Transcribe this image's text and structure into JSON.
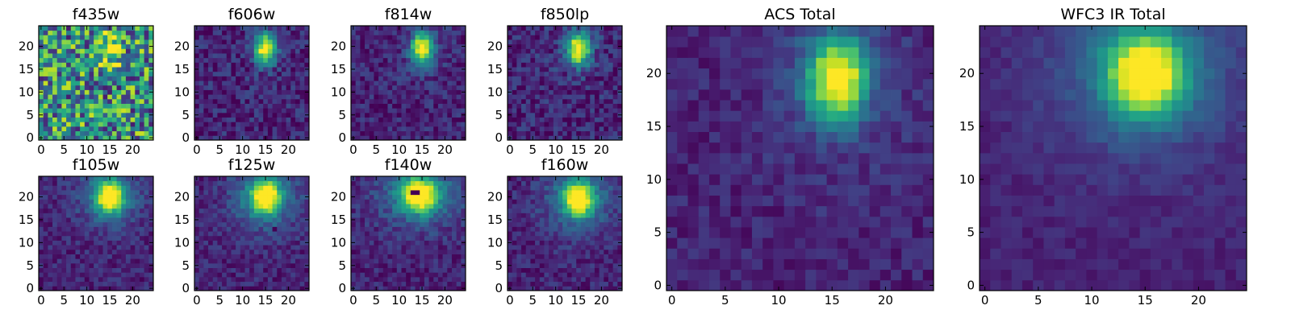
{
  "chart_data": [
    {
      "type": "heatmap",
      "title": "f435w",
      "cmap": "viridis",
      "grid_size": 25,
      "xticks": [
        0,
        5,
        10,
        15,
        20
      ],
      "yticks": [
        0,
        5,
        10,
        15,
        20
      ],
      "source": {
        "cx": 15,
        "cy": 19.5,
        "sx": 1.7,
        "sy": 2.4
      },
      "noise": 0.42,
      "halo": 0.0,
      "ring": false,
      "bright_background": true
    },
    {
      "type": "heatmap",
      "title": "f606w",
      "cmap": "viridis",
      "grid_size": 25,
      "xticks": [
        0,
        5,
        10,
        15,
        20
      ],
      "yticks": [
        0,
        5,
        10,
        15,
        20
      ],
      "source": {
        "cx": 15,
        "cy": 19.5,
        "sx": 1.6,
        "sy": 2.3
      },
      "noise": 0.14,
      "halo": 0.06
    },
    {
      "type": "heatmap",
      "title": "f814w",
      "cmap": "viridis",
      "grid_size": 25,
      "xticks": [
        0,
        5,
        10,
        15,
        20
      ],
      "yticks": [
        0,
        5,
        10,
        15,
        20
      ],
      "source": {
        "cx": 15,
        "cy": 19.5,
        "sx": 1.6,
        "sy": 2.3
      },
      "noise": 0.12,
      "halo": 0.1
    },
    {
      "type": "heatmap",
      "title": "f850lp",
      "cmap": "viridis",
      "grid_size": 25,
      "xticks": [
        0,
        5,
        10,
        15,
        20
      ],
      "yticks": [
        0,
        5,
        10,
        15,
        20
      ],
      "source": {
        "cx": 15,
        "cy": 19.5,
        "sx": 1.7,
        "sy": 2.4
      },
      "noise": 0.14,
      "halo": 0.12
    },
    {
      "type": "heatmap",
      "title": "f105w",
      "cmap": "viridis",
      "grid_size": 25,
      "xticks": [
        0,
        5,
        10,
        15,
        20
      ],
      "yticks": [
        0,
        5,
        10,
        15,
        20
      ],
      "source": {
        "cx": 15,
        "cy": 20,
        "sx": 2.1,
        "sy": 2.4
      },
      "noise": 0.1,
      "halo": 0.28
    },
    {
      "type": "heatmap",
      "title": "f125w",
      "cmap": "viridis",
      "grid_size": 25,
      "xticks": [
        0,
        5,
        10,
        15,
        20
      ],
      "yticks": [
        0,
        5,
        10,
        15,
        20
      ],
      "source": {
        "cx": 15,
        "cy": 20,
        "sx": 2.2,
        "sy": 2.5
      },
      "noise": 0.1,
      "halo": 0.32,
      "dark_patch": [
        17,
        13
      ]
    },
    {
      "type": "heatmap",
      "title": "f140w",
      "cmap": "viridis",
      "grid_size": 25,
      "xticks": [
        0,
        5,
        10,
        15,
        20
      ],
      "yticks": [
        0,
        5,
        10,
        15,
        20
      ],
      "source": {
        "cx": 14.5,
        "cy": 20.5,
        "sx": 2.6,
        "sy": 2.4
      },
      "noise": 0.1,
      "halo": 0.36,
      "dark_patch": [
        14,
        21
      ]
    },
    {
      "type": "heatmap",
      "title": "f160w",
      "cmap": "viridis",
      "grid_size": 25,
      "xticks": [
        0,
        5,
        10,
        15,
        20
      ],
      "yticks": [
        0,
        5,
        10,
        15,
        20
      ],
      "source": {
        "cx": 15,
        "cy": 19.5,
        "sx": 2.2,
        "sy": 2.5
      },
      "noise": 0.1,
      "halo": 0.32
    },
    {
      "type": "heatmap",
      "title": "ACS Total",
      "cmap": "viridis",
      "grid_size": 25,
      "xticks": [
        0,
        5,
        10,
        15,
        20
      ],
      "yticks": [
        0,
        5,
        10,
        15,
        20
      ],
      "source": {
        "cx": 15.5,
        "cy": 19.5,
        "sx": 1.9,
        "sy": 2.7
      },
      "noise": 0.08,
      "halo": 0.14
    },
    {
      "type": "heatmap",
      "title": "WFC3 IR Total",
      "cmap": "viridis",
      "grid_size": 25,
      "xticks": [
        0,
        5,
        10,
        15,
        20
      ],
      "yticks": [
        0,
        5,
        10,
        15,
        20
      ],
      "source": {
        "cx": 15,
        "cy": 20,
        "sx": 2.4,
        "sy": 2.6
      },
      "noise": 0.05,
      "halo": 0.3
    }
  ]
}
